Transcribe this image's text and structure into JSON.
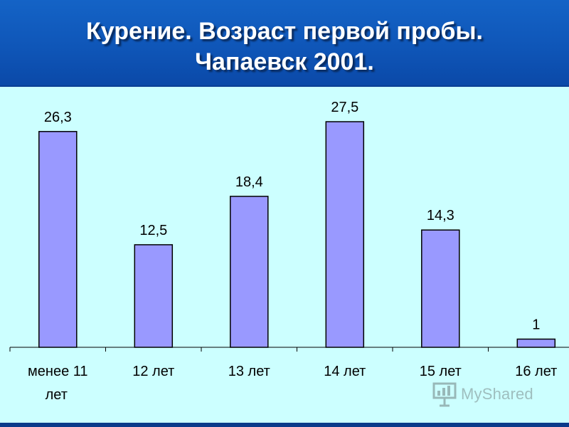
{
  "title": {
    "line1": "Курение. Возраст первой пробы.",
    "line2": "Чапаевск 2001."
  },
  "chart_data": {
    "type": "bar",
    "categories": [
      "менее 11 лет",
      "12 лет",
      "13 лет",
      "14 лет",
      "15 лет",
      "16 лет"
    ],
    "category_lines": [
      [
        "менее 11",
        "лет"
      ],
      [
        "12 лет"
      ],
      [
        "13 лет"
      ],
      [
        "14 лет"
      ],
      [
        "15 лет"
      ],
      [
        "16 лет"
      ]
    ],
    "values": [
      26.3,
      12.5,
      18.4,
      27.5,
      14.3,
      1
    ],
    "value_labels": [
      "26,3",
      "12,5",
      "18,4",
      "27,5",
      "14,3",
      "1"
    ],
    "title": "Курение. Возраст первой пробы. Чапаевск 2001.",
    "xlabel": "",
    "ylabel": "",
    "ylim": [
      0,
      27.5
    ],
    "grid": false,
    "legend": "none",
    "bar_color": "#9999FF",
    "background_color": "#CCFFFF"
  },
  "header_color": "#1160C4",
  "watermark": {
    "text": "MyShared",
    "icon": "presentation-board-icon"
  }
}
